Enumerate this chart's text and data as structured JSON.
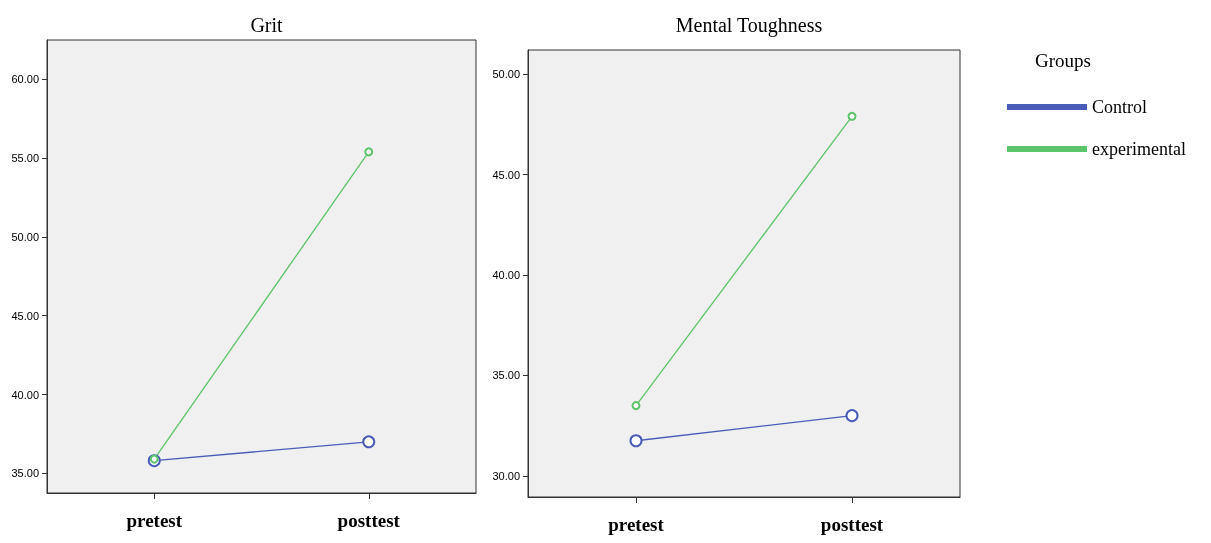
{
  "chart_data": [
    {
      "type": "line",
      "title": "Grit",
      "categories": [
        "pretest",
        "posttest"
      ],
      "series": [
        {
          "color": "#4a5cb8",
          "values": [
            35.8,
            37.0
          ]
        },
        {
          "color": "#5cc46a",
          "values": [
            35.9,
            55.4
          ]
        }
      ],
      "ylim": [
        33.75,
        62.5
      ],
      "yticks": [
        {
          "value": 35,
          "label": "35.00"
        },
        {
          "value": 40,
          "label": "40.00"
        },
        {
          "value": 45,
          "label": "45.00"
        },
        {
          "value": 50,
          "label": "50.00"
        },
        {
          "value": 55,
          "label": "55.00"
        },
        {
          "value": 60,
          "label": "60.00"
        }
      ],
      "marker": "circle",
      "grid": false,
      "legend": false
    },
    {
      "type": "line",
      "title": "Mental Toughness",
      "categories": [
        "pretest",
        "posttest"
      ],
      "series": [
        {
          "name": "Control",
          "color": "#4a5cb8",
          "values": [
            31.75,
            33.0
          ]
        },
        {
          "name": "experimental",
          "color": "#5cc46a",
          "values": [
            33.5,
            47.9
          ]
        }
      ],
      "ylim": [
        28.95,
        51.2
      ],
      "yticks": [
        {
          "value": 30,
          "label": "30.00"
        },
        {
          "value": 35,
          "label": "35.00"
        },
        {
          "value": 40,
          "label": "40.00"
        },
        {
          "value": 45,
          "label": "45.00"
        },
        {
          "value": 50,
          "label": "50.00"
        }
      ],
      "marker": "circle",
      "grid": false,
      "legend": "right",
      "legend_title": "Groups"
    }
  ]
}
